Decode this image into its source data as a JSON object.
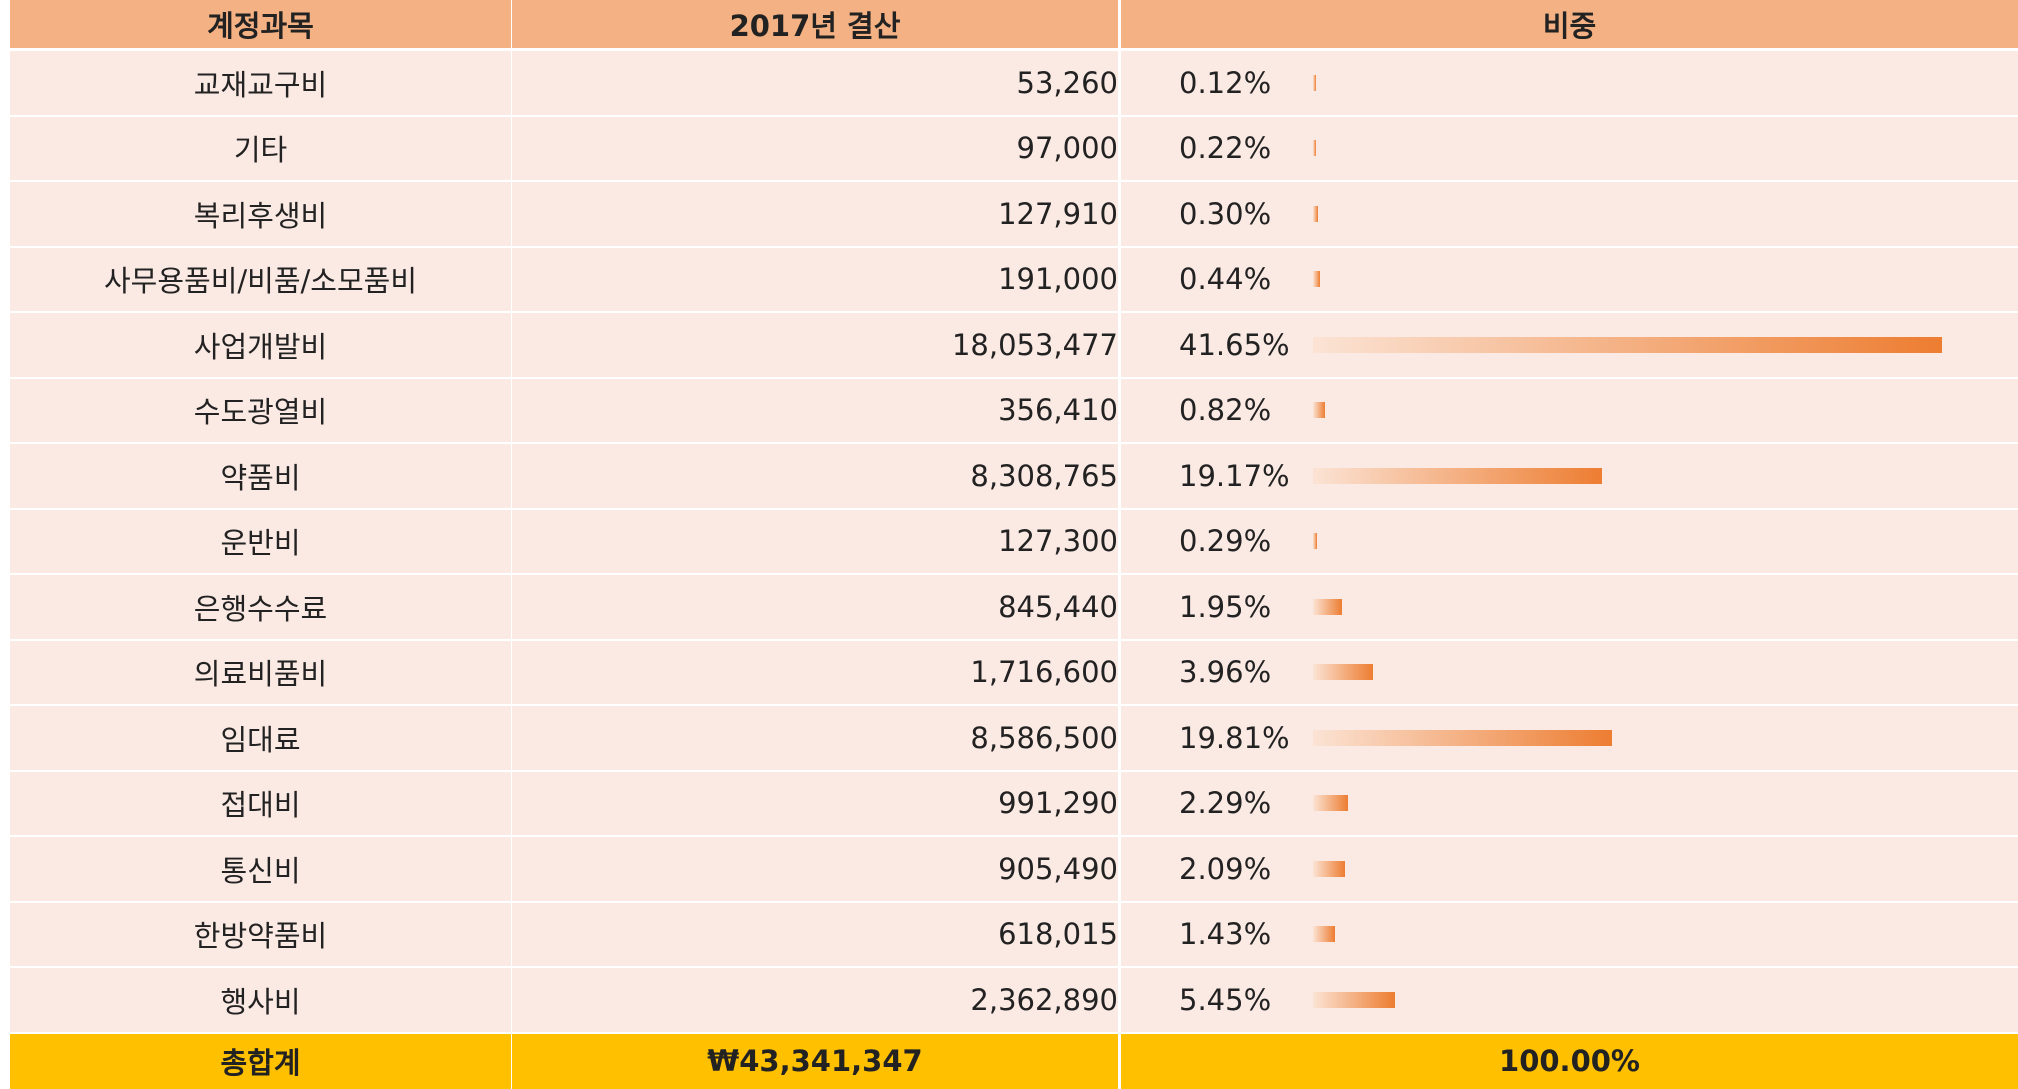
{
  "table": {
    "header": [
      "계정과목",
      "2017년 결산",
      "비중"
    ],
    "rows": [
      [
        "교재교구비",
        "53,260",
        "0.12%"
      ],
      [
        "기타",
        "97,000",
        "0.22%"
      ],
      [
        "복리후생비",
        "127,910",
        "0.30%"
      ],
      [
        "사무용품비/비품/소모품비",
        "191,000",
        "0.44%"
      ],
      [
        "사업개발비",
        "18,053,477",
        "41.65%"
      ],
      [
        "수도광열비",
        "356,410",
        "0.82%"
      ],
      [
        "약품비",
        "8,308,765",
        "19.17%"
      ],
      [
        "운반비",
        "127,300",
        "0.29%"
      ],
      [
        "은행수수료",
        "845,440",
        "1.95%"
      ],
      [
        "의료비품비",
        "1,716,600",
        "3.96%"
      ],
      [
        "임대료",
        "8,586,500",
        "19.81%"
      ],
      [
        "접대비",
        "991,290",
        "2.29%"
      ],
      [
        "통신비",
        "905,490",
        "2.09%"
      ],
      [
        "한방약품비",
        "618,015",
        "1.43%"
      ],
      [
        "행사비",
        "2,362,890",
        "5.45%"
      ]
    ],
    "total": [
      "총합계",
      "₩43,341,347",
      "100.00%"
    ]
  }
}
